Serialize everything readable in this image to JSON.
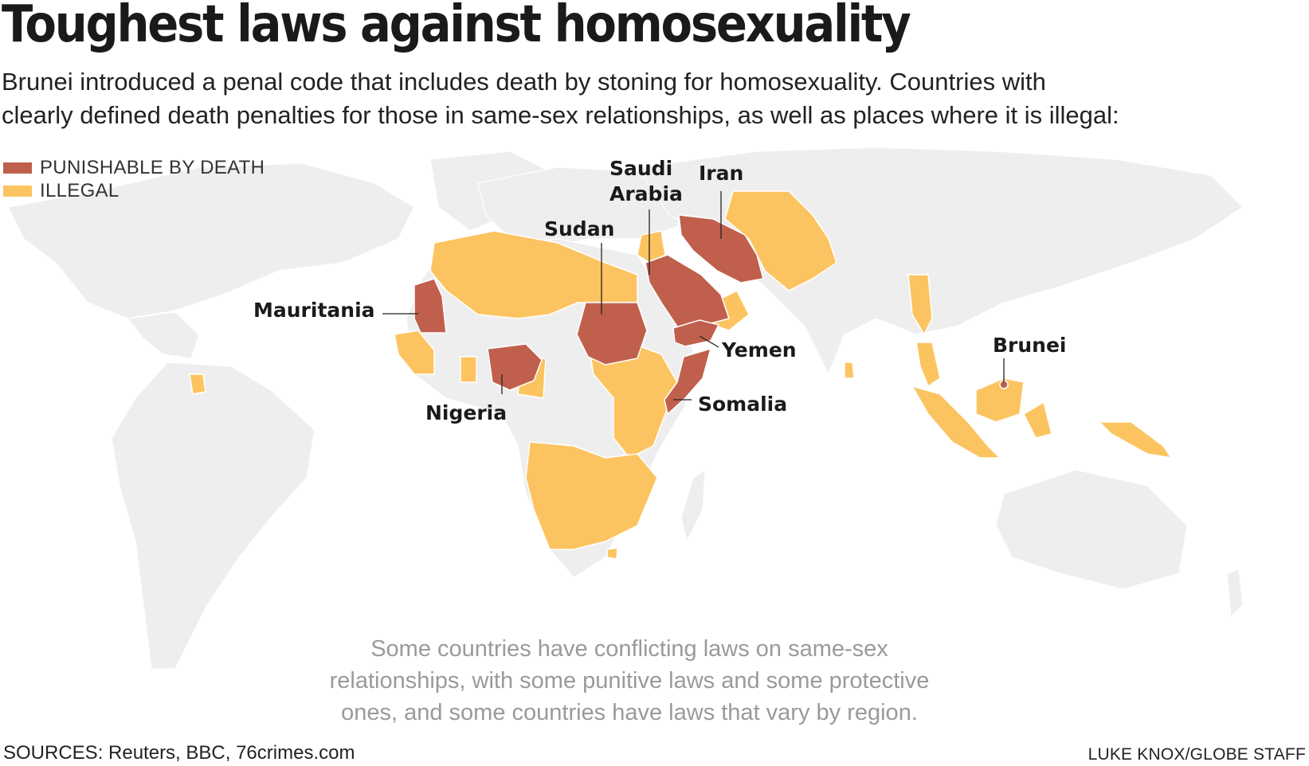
{
  "title": "Toughest laws against homosexuality",
  "subtitle_lines": [
    "Brunei introduced a penal code that includes death by stoning for homosexuality. Countries with",
    "clearly defined death penalties for those in same-sex relationships, as well as places where it is illegal:"
  ],
  "legend": [
    {
      "label": "PUNISHABLE BY DEATH",
      "color": "#c0604c"
    },
    {
      "label": "ILLEGAL",
      "color": "#fcc460"
    }
  ],
  "country_labels": {
    "saudi_arabia_line1": "Saudi",
    "saudi_arabia_line2": "Arabia",
    "iran": "Iran",
    "sudan": "Sudan",
    "mauritania": "Mauritania",
    "yemen": "Yemen",
    "nigeria": "Nigeria",
    "somalia": "Somalia",
    "brunei": "Brunei"
  },
  "note_lines": [
    "Some countries have conflicting laws on same-sex",
    "relationships, with some punitive laws and some protective",
    "ones, and some countries have laws that vary by region."
  ],
  "sources": "SOURCES: Reuters, BBC, 76crimes.com",
  "credit": "LUKE KNOX/GLOBE STAFF",
  "colors": {
    "land": "#eeeeee",
    "death": "#c0604c",
    "illegal": "#fcc460"
  }
}
